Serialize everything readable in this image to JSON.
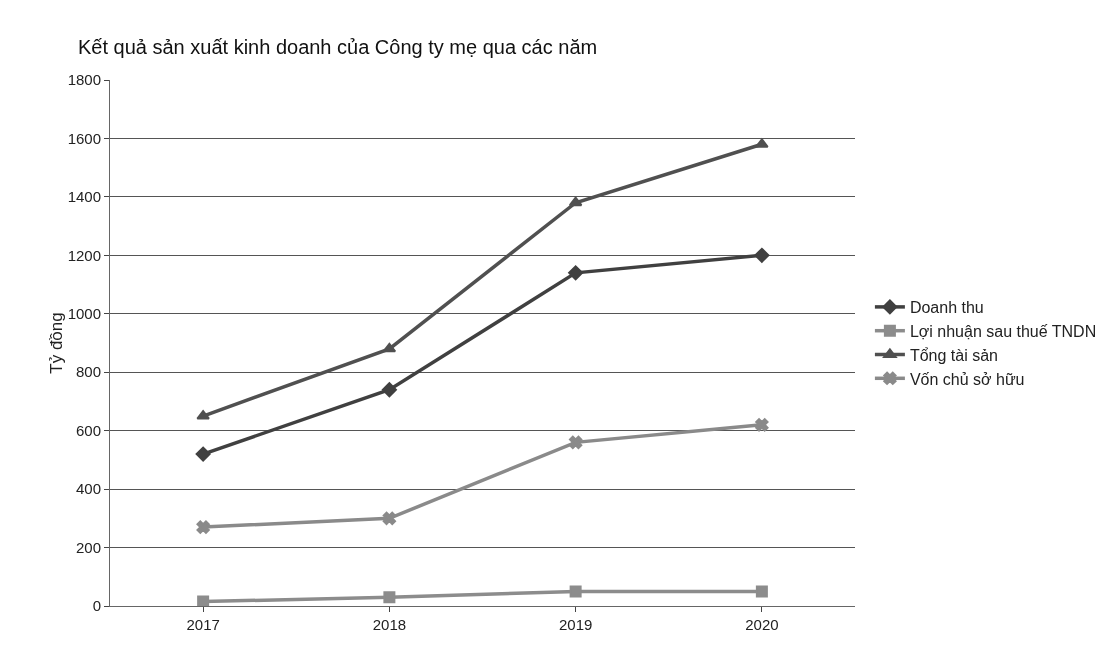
{
  "chart_data": {
    "type": "line",
    "title": "Kết quả sản xuất kinh doanh của Công ty mẹ qua các năm",
    "ylabel": "Tỷ đồng",
    "categories": [
      "2017",
      "2018",
      "2019",
      "2020"
    ],
    "series": [
      {
        "name": "Doanh thu",
        "color": "#404040",
        "marker": "diamond",
        "values": [
          520,
          740,
          1140,
          1200
        ]
      },
      {
        "name": "Lợi nhuận sau thuế TNDN",
        "color": "#8c8c8c",
        "marker": "square",
        "values": [
          15,
          30,
          50,
          50
        ]
      },
      {
        "name": "Tổng tài sản",
        "color": "#505050",
        "marker": "triangle",
        "values": [
          650,
          880,
          1380,
          1580
        ]
      },
      {
        "name": "Vốn chủ sở hữu",
        "color": "#8a8a8a",
        "marker": "cross",
        "values": [
          270,
          300,
          560,
          620
        ]
      }
    ],
    "ylim": [
      0,
      1800
    ],
    "yticks": [
      0,
      200,
      400,
      600,
      800,
      1000,
      1200,
      1400,
      1600,
      1800
    ],
    "grid": "y",
    "legend": "right"
  }
}
